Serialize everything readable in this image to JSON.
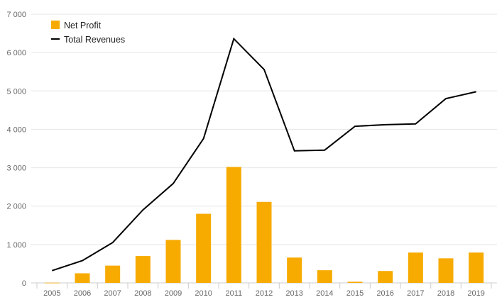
{
  "chart_data": {
    "type": "bar",
    "categories": [
      "2005",
      "2006",
      "2007",
      "2008",
      "2009",
      "2010",
      "2011",
      "2012",
      "2013",
      "2014",
      "2015",
      "2016",
      "2017",
      "2018",
      "2019"
    ],
    "series": [
      {
        "name": "Net Profit",
        "type": "bar",
        "color": "#f7ab00",
        "values": [
          5,
          250,
          450,
          700,
          1120,
          1800,
          3020,
          2110,
          660,
          330,
          30,
          310,
          790,
          640,
          790
        ]
      },
      {
        "name": "Total Revenues",
        "type": "line",
        "color": "#000000",
        "values": [
          320,
          580,
          1050,
          1900,
          2590,
          3760,
          6360,
          5560,
          3440,
          3460,
          4080,
          4120,
          4140,
          4800,
          4980
        ]
      }
    ],
    "ylim": [
      0,
      7000
    ],
    "yticks": [
      0,
      1000,
      2000,
      3000,
      4000,
      5000,
      6000,
      7000
    ],
    "ytick_labels": [
      "0",
      "1 000",
      "2 000",
      "3 000",
      "4 000",
      "5 000",
      "6 000",
      "7 000"
    ],
    "xlabel": "",
    "ylabel": "",
    "grid": true,
    "legend": "top-left"
  }
}
